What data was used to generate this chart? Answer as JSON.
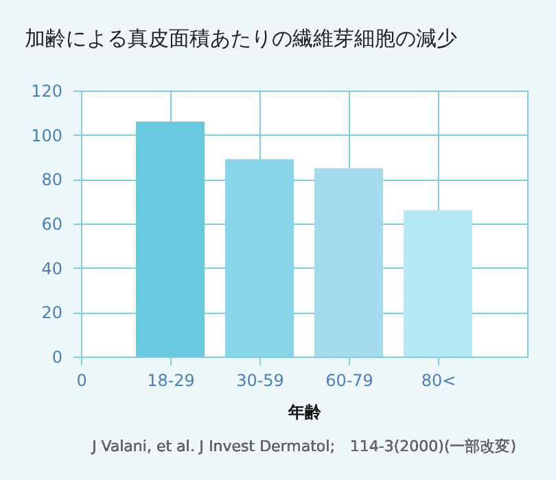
{
  "chart_data": {
    "type": "bar",
    "title": "加齢による真皮面積あたりの繊維芽細胞の減少",
    "xlabel": "年齢",
    "categories": [
      "0",
      "18-29",
      "30-59",
      "60-79",
      "80<"
    ],
    "values": [
      null,
      106,
      89,
      85,
      66
    ],
    "colors": [
      null,
      "#68c8dd",
      "#89d5e8",
      "#a3dded",
      "#b5e8f5"
    ],
    "ylim": [
      0,
      120
    ],
    "yticks": [
      0,
      20,
      40,
      60,
      80,
      100,
      120
    ],
    "grid": true,
    "annotations": [
      "J Valani, et al. J Invest Dermatol;　114-3(2000)(一部改変)"
    ]
  }
}
